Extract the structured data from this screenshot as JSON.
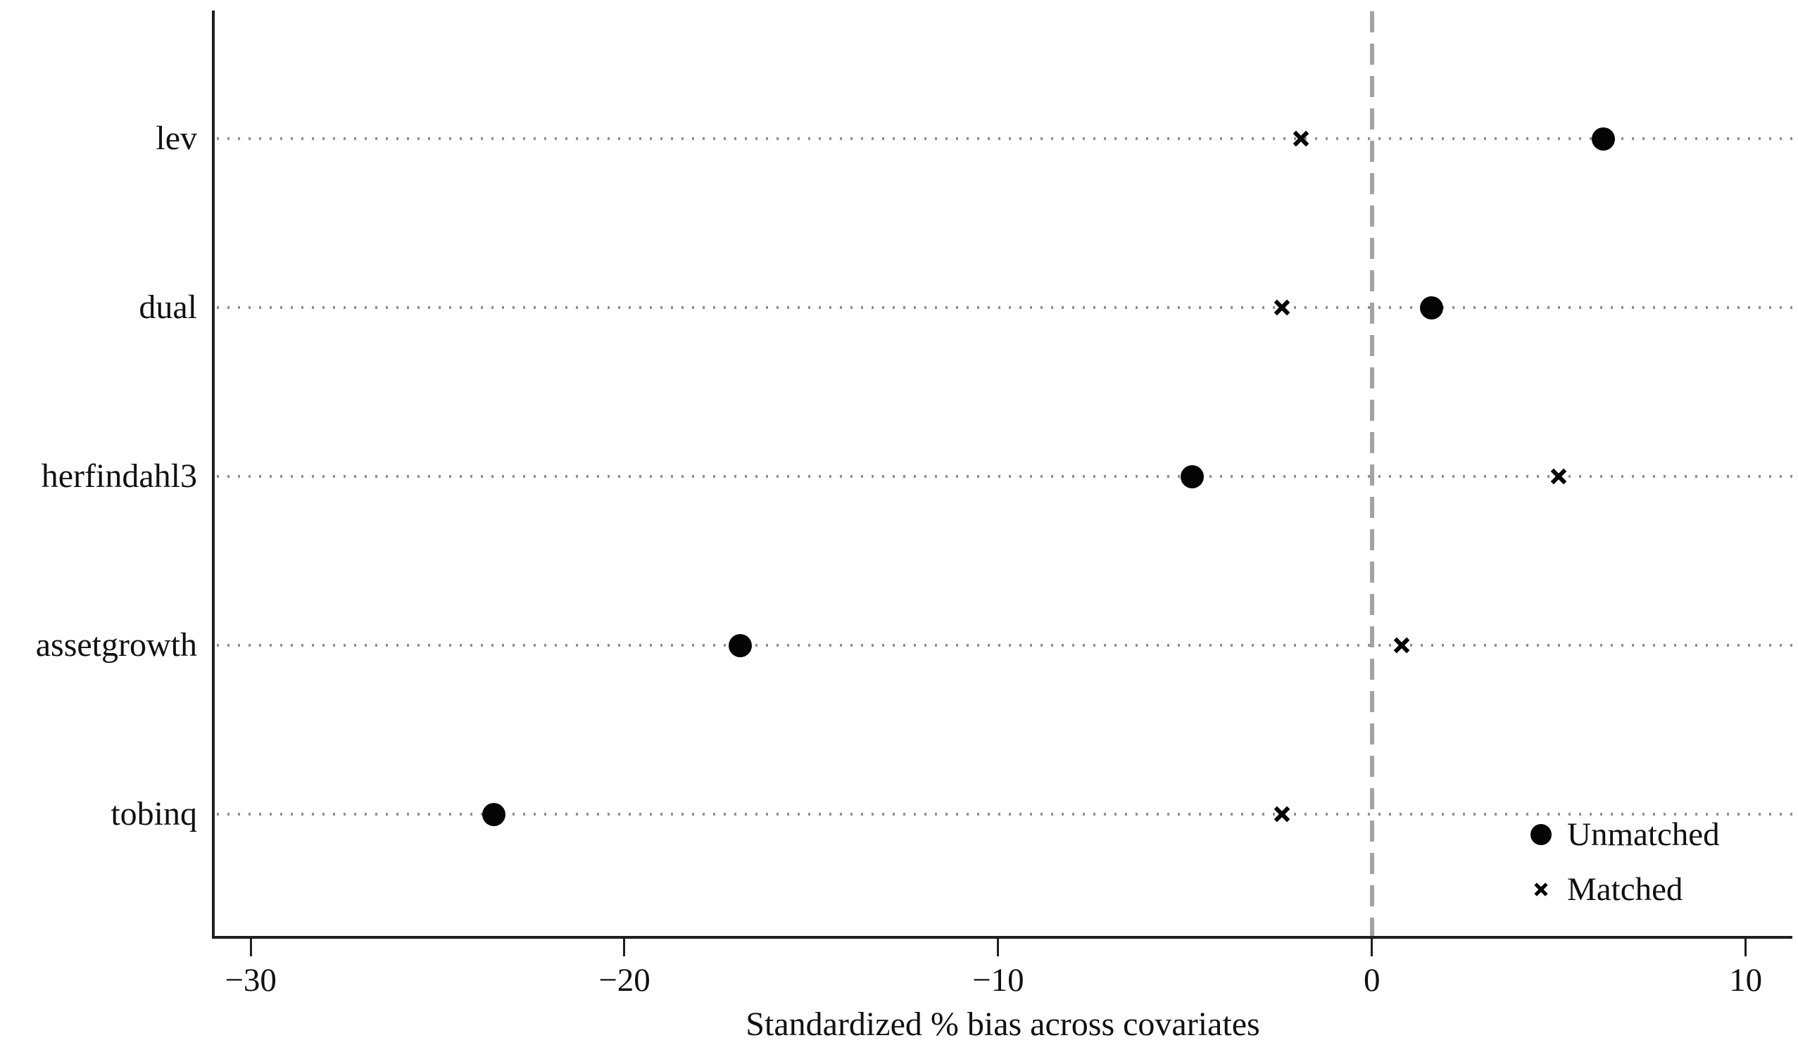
{
  "chart_data": {
    "type": "scatter",
    "title": "",
    "xlabel": "Standardized % bias across covariates",
    "categories": [
      "lev",
      "dual",
      "herfindahl3",
      "assetgrowth",
      "tobinq"
    ],
    "series": [
      {
        "name": "Unmatched",
        "marker": "circle",
        "values": [
          6.2,
          1.6,
          -4.8,
          -16.9,
          -23.5
        ]
      },
      {
        "name": "Matched",
        "marker": "x",
        "values": [
          -1.9,
          -2.4,
          5.0,
          0.8,
          -2.4
        ]
      }
    ],
    "x_ticks": [
      -30,
      -20,
      -10,
      0,
      10
    ],
    "x_tick_labels": [
      "−30",
      "−20",
      "−10",
      "0",
      "10"
    ],
    "xlim": [
      -31.0,
      11.25
    ],
    "reference_line_x": 0,
    "grid": "horizontal-dotted",
    "legend_position": "bottom-right",
    "colors": {
      "marker": "#000000",
      "grid": "#8f8f8f",
      "axis": "#1f1f1f",
      "reference_line": "#a3a3a3",
      "background": "#ffffff"
    }
  }
}
